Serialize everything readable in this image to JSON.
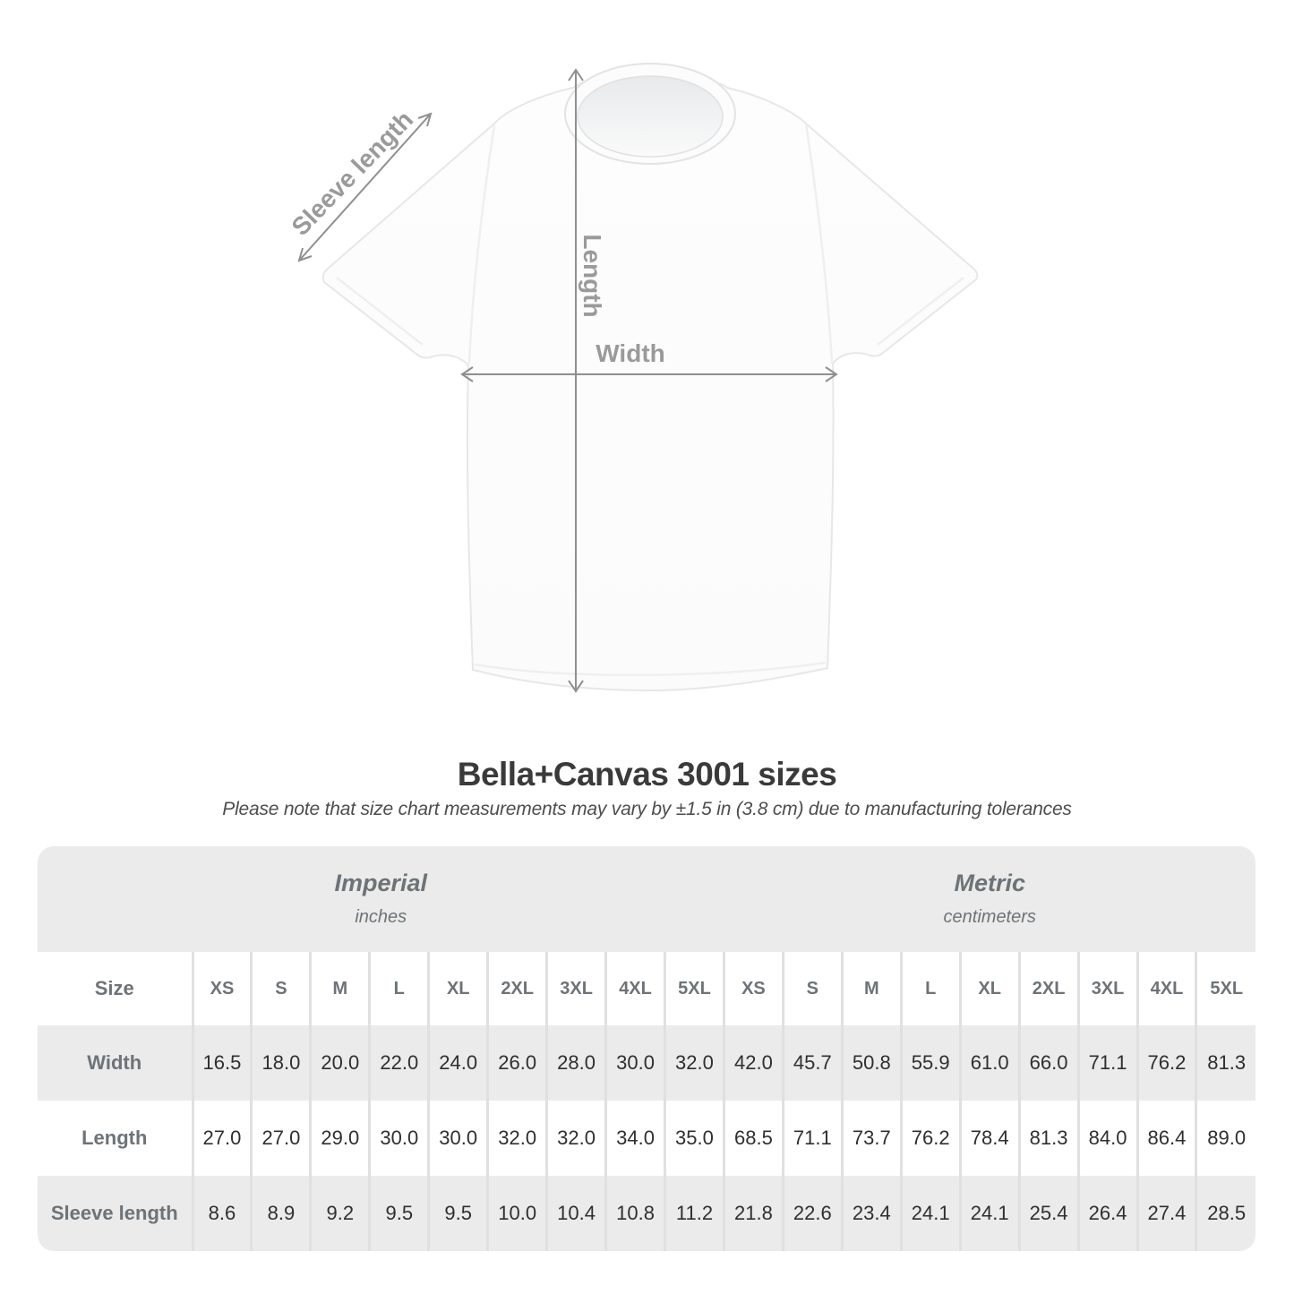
{
  "heading": {
    "title": "Bella+Canvas 3001 sizes",
    "subtitle": "Please note that size chart measurements may vary by ±1.5 in (3.8 cm) due to manufacturing tolerances"
  },
  "diagram": {
    "sleeve_label": "Sleeve length",
    "length_label": "Length",
    "width_label": "Width",
    "arrow_color": "#8f8f8f",
    "label_color": "#9a9a9a"
  },
  "table": {
    "groups": [
      {
        "label": "Imperial",
        "sublabel": "inches"
      },
      {
        "label": "Metric",
        "sublabel": "centimeters"
      }
    ],
    "size_column_header": "Size",
    "sizes": [
      "XS",
      "S",
      "M",
      "L",
      "XL",
      "2XL",
      "3XL",
      "4XL",
      "5XL"
    ],
    "rows": [
      {
        "label": "Width",
        "imperial": [
          "16.5",
          "18.0",
          "20.0",
          "22.0",
          "24.0",
          "26.0",
          "28.0",
          "30.0",
          "32.0"
        ],
        "metric": [
          "42.0",
          "45.7",
          "50.8",
          "55.9",
          "61.0",
          "66.0",
          "71.1",
          "76.2",
          "81.3"
        ]
      },
      {
        "label": "Length",
        "imperial": [
          "27.0",
          "27.0",
          "29.0",
          "30.0",
          "30.0",
          "32.0",
          "32.0",
          "34.0",
          "35.0"
        ],
        "metric": [
          "68.5",
          "71.1",
          "73.7",
          "76.2",
          "78.4",
          "81.3",
          "84.0",
          "86.4",
          "89.0"
        ]
      },
      {
        "label": "Sleeve length",
        "imperial": [
          "8.6",
          "8.9",
          "9.2",
          "9.5",
          "9.5",
          "10.0",
          "10.4",
          "10.8",
          "11.2"
        ],
        "metric": [
          "21.8",
          "22.6",
          "23.4",
          "24.1",
          "24.1",
          "25.4",
          "26.4",
          "27.4",
          "28.5"
        ]
      }
    ],
    "colors": {
      "band": "#ebebeb",
      "separator": "#e0e0e0",
      "header_text": "#6d7377",
      "value_text": "#2f2f2f"
    }
  },
  "chart_data": {
    "type": "table",
    "title": "Bella+Canvas 3001 sizes",
    "note": "Please note that size chart measurements may vary by ±1.5 in (3.8 cm) due to manufacturing tolerances",
    "column_groups": [
      {
        "name": "Imperial",
        "units": "inches"
      },
      {
        "name": "Metric",
        "units": "centimeters"
      }
    ],
    "sizes": [
      "XS",
      "S",
      "M",
      "L",
      "XL",
      "2XL",
      "3XL",
      "4XL",
      "5XL"
    ],
    "measurements": {
      "width_in": [
        16.5,
        18.0,
        20.0,
        22.0,
        24.0,
        26.0,
        28.0,
        30.0,
        32.0
      ],
      "length_in": [
        27.0,
        27.0,
        29.0,
        30.0,
        30.0,
        32.0,
        32.0,
        34.0,
        35.0
      ],
      "sleeve_in": [
        8.6,
        8.9,
        9.2,
        9.5,
        9.5,
        10.0,
        10.4,
        10.8,
        11.2
      ],
      "width_cm": [
        42.0,
        45.7,
        50.8,
        55.9,
        61.0,
        66.0,
        71.1,
        76.2,
        81.3
      ],
      "length_cm": [
        68.5,
        71.1,
        73.7,
        76.2,
        78.4,
        81.3,
        84.0,
        86.4,
        89.0
      ],
      "sleeve_cm": [
        21.8,
        22.6,
        23.4,
        24.1,
        24.1,
        25.4,
        26.4,
        27.4,
        28.5
      ]
    }
  }
}
